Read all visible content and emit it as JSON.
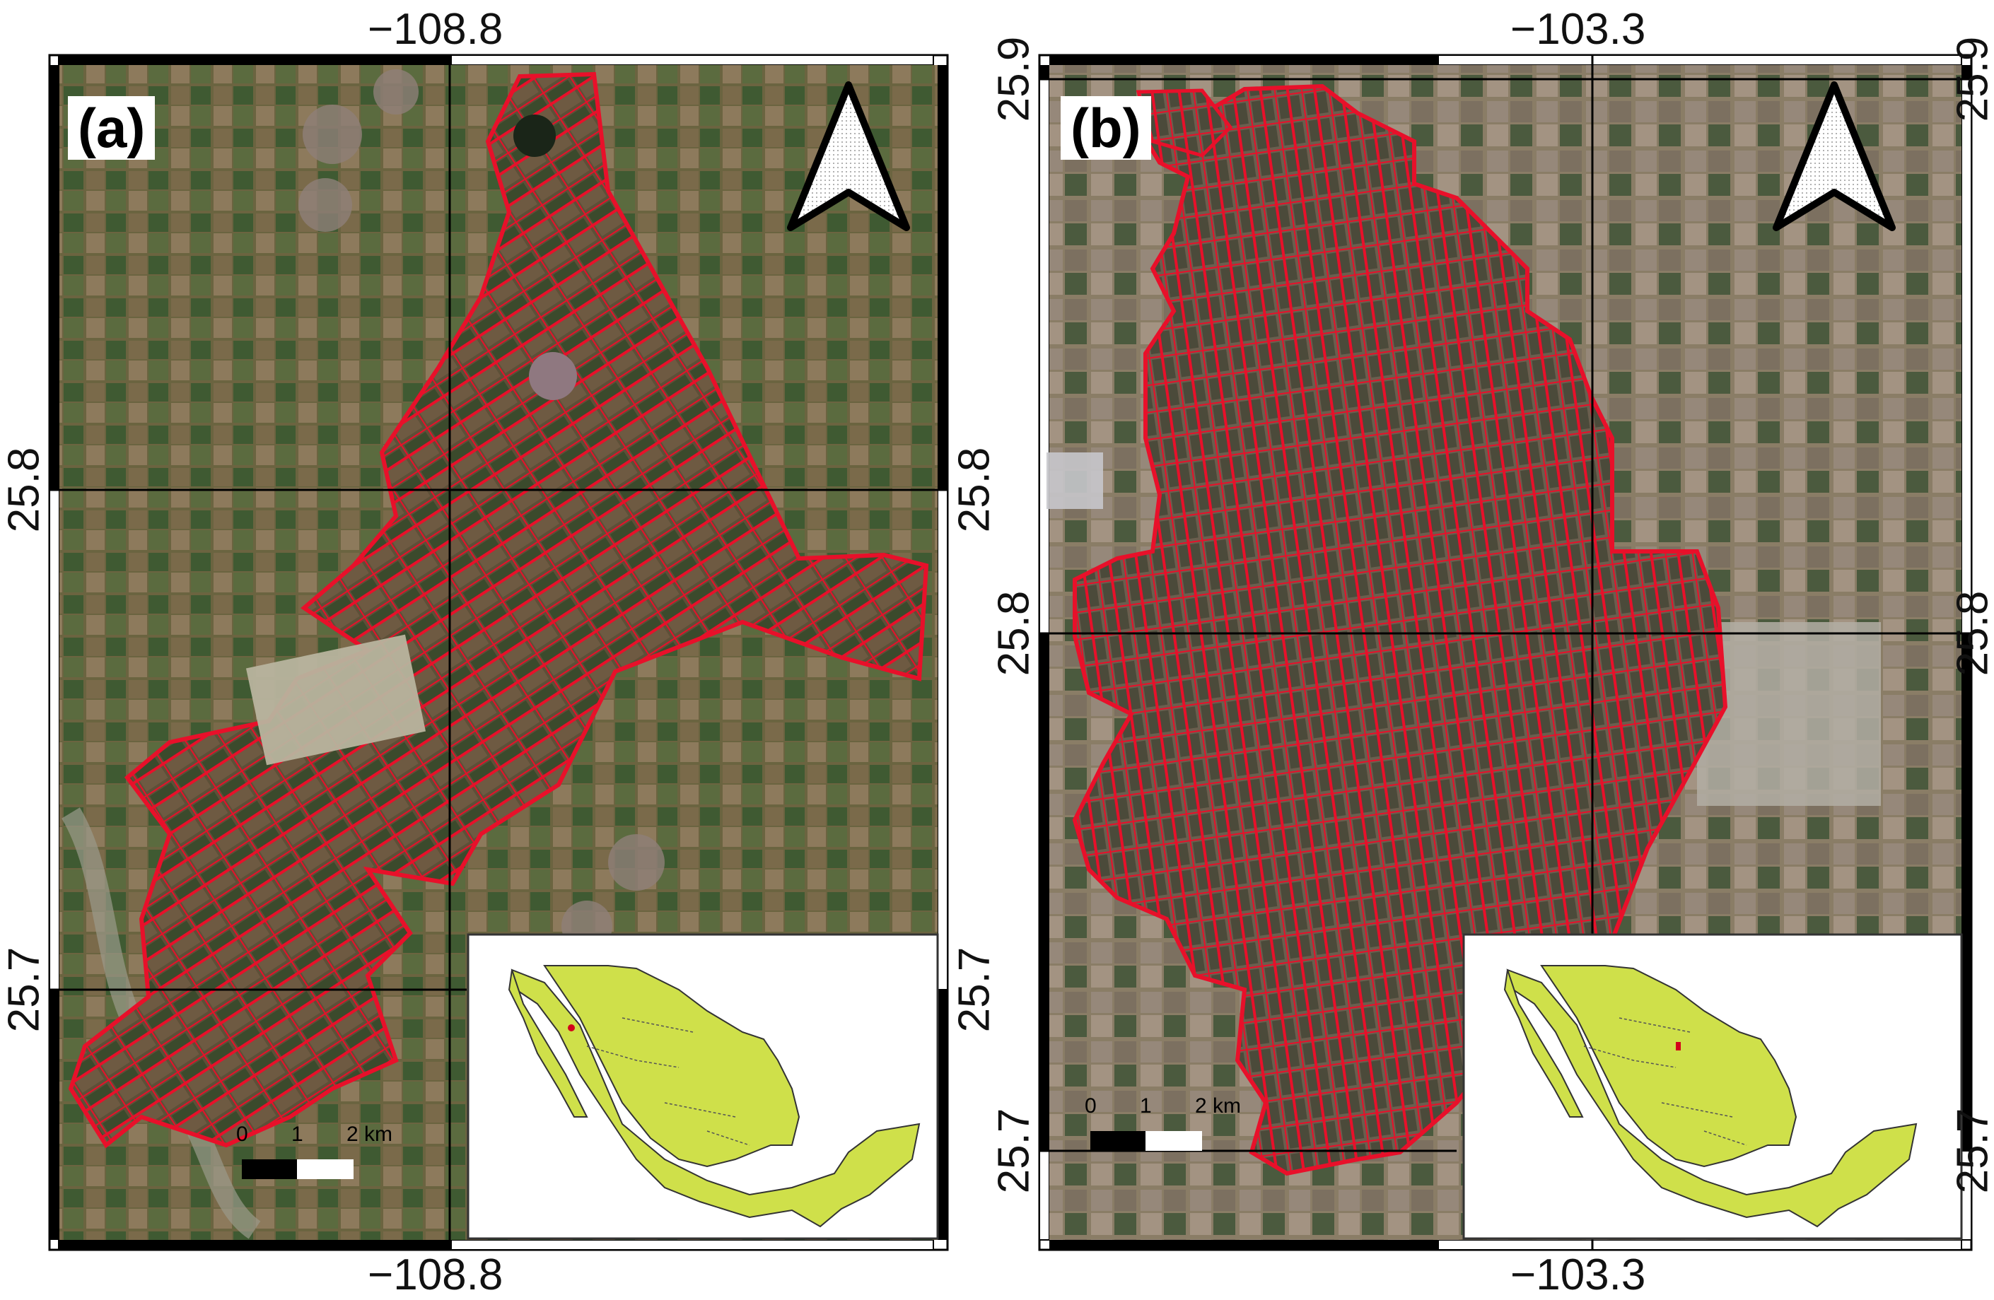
{
  "panel_a": {
    "tag": "(a)",
    "top_lon": "−108.8",
    "bottom_lon": "−108.8",
    "left_lat_upper": "25.8",
    "left_lat_lower": "25.7",
    "right_lat_upper": "25.8",
    "right_lat_lower": "25.7",
    "scale": {
      "t0": "0",
      "t1": "1",
      "t2": "2 km"
    },
    "inset_marker_color": "#d4001a"
  },
  "panel_b": {
    "tag": "(b)",
    "top_lon": "−103.3",
    "bottom_lon": "−103.3",
    "left_lat_upper": "25.9",
    "left_lat_lower": "25.8",
    "left_lat_bottom": "25.7",
    "right_lat_upper": "25.9",
    "right_lat_lower": "25.8",
    "right_lat_bottom": "25.7",
    "scale": {
      "t0": "0",
      "t1": "1",
      "t2": "2 km"
    },
    "inset_marker_color": "#d4001a"
  },
  "colors": {
    "field_boundary": "#e8102a",
    "mexico_fill": "#cfe04a",
    "satellite_a": "#6b6440",
    "satellite_b": "#8a7d66"
  },
  "icons": [
    "north-arrow-icon",
    "mexico-inset-map"
  ]
}
